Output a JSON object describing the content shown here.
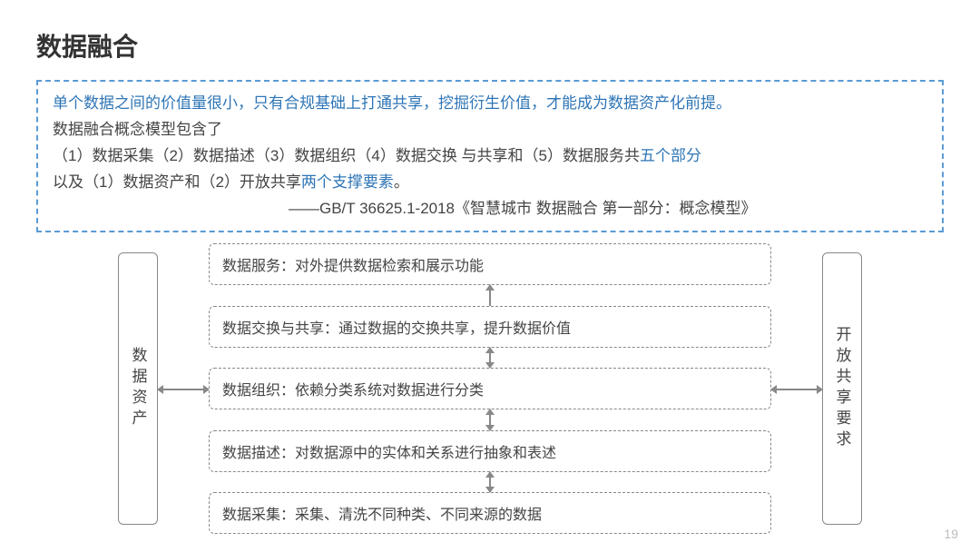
{
  "title": "数据融合",
  "callout": {
    "lead": "单个数据之间的价值量很小，只有合规基础上打通共享，挖掘衍生价值，才能成为数据资产化前提。",
    "line2_pre": "数据融合概念模型包含了",
    "line3_pre": "（1）数据采集（2）数据描述（3）数据组织（4）数据交换 与共享和（5）数据服务共",
    "line3_hl": "五个部分",
    "line4_pre": "以及（1）数据资产和（2）开放共享",
    "line4_hl": "两个支撑要素",
    "line4_post": "。",
    "source": "——GB/T 36625.1-2018《智慧城市 数据融合 第一部分：概念模型》"
  },
  "diagram": {
    "left_pillar": "数据资产",
    "right_pillar": "开放共享要求",
    "layers": [
      {
        "text": "数据服务：对外提供数据检索和展示功能"
      },
      {
        "text": "数据交换与共享：通过数据的交换共享，提升数据价值"
      },
      {
        "text": "数据组织：依赖分类系统对数据进行分类"
      },
      {
        "text": "数据描述：对数据源中的实体和关系进行抽象和表述"
      },
      {
        "text": "数据采集：采集、清洗不同种类、不同来源的数据"
      }
    ],
    "colors": {
      "border": "#888888",
      "accent": "#5a9bd5",
      "text": "#444444",
      "background": "#ffffff"
    },
    "connector_style": "double-arrow",
    "top_connector_style": "up-arrow-only"
  },
  "page_number": "19"
}
